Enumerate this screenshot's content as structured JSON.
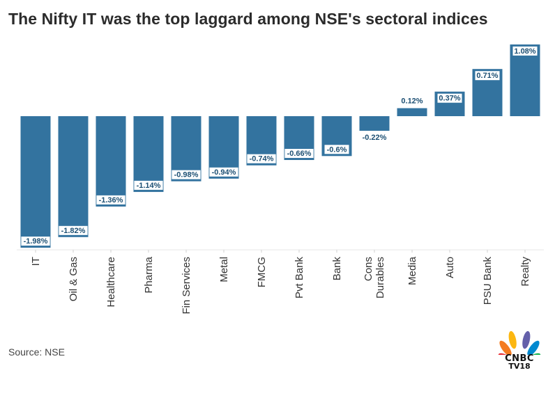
{
  "chart_data": {
    "type": "bar",
    "title": "The Nifty IT was the top laggard among NSE's sectoral indices",
    "categories": [
      "IT",
      "Oil & Gas",
      "Healthcare",
      "Pharma",
      "Fin Services",
      "Metal",
      "FMCG",
      "Pvt Bank",
      "Bank",
      "Cons Durables",
      "Media",
      "Auto",
      "PSU Bank",
      "Realty"
    ],
    "values": [
      -1.98,
      -1.82,
      -1.36,
      -1.14,
      -0.98,
      -0.94,
      -0.74,
      -0.66,
      -0.6,
      -0.22,
      0.12,
      0.37,
      0.71,
      1.08
    ],
    "labels": [
      "-1.98%",
      "-1.82%",
      "-1.36%",
      "-1.14%",
      "-0.98%",
      "-0.94%",
      "-0.74%",
      "-0.66%",
      "-0.6%",
      "-0.22%",
      "0.12%",
      "0.37%",
      "0.71%",
      "1.08%"
    ],
    "xlabel": "",
    "ylabel": "",
    "ylim": [
      -1.98,
      1.08
    ],
    "bar_color": "#33739f",
    "label_color": "#1c4f73",
    "grid": false
  },
  "source": "Source: NSE",
  "logo": {
    "line1": "CNBC",
    "line2": "TV18"
  }
}
